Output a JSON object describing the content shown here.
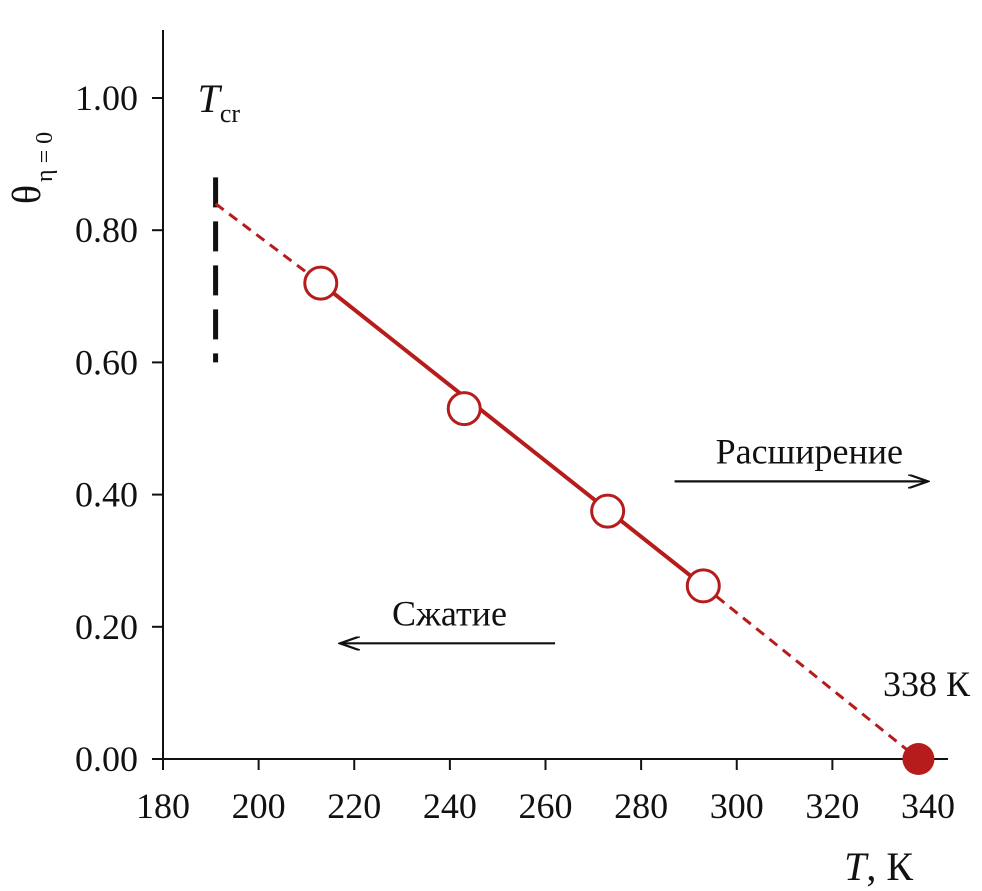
{
  "chart_data": {
    "type": "scatter",
    "xlabel": {
      "var": "T",
      "unit": ", К"
    },
    "ylabel": {
      "var": "θ",
      "sub": "η = 0"
    },
    "xlim": [
      180,
      340
    ],
    "ylim": [
      0,
      1.1
    ],
    "xticks": [
      "180",
      "200",
      "220",
      "240",
      "260",
      "280",
      "300",
      "320",
      "340"
    ],
    "yticks": [
      "0.00",
      "0.20",
      "0.40",
      "0.60",
      "0.80",
      "1.00"
    ],
    "grid": false,
    "series": [
      {
        "marker": "open-circle",
        "color": "#b71c1c",
        "x": [
          213,
          243,
          273,
          293
        ],
        "y": [
          0.72,
          0.53,
          0.375,
          0.262
        ]
      }
    ],
    "fit_line": {
      "color": "#b71c1c",
      "solid_from": [
        213,
        0.72
      ],
      "solid_to": [
        293,
        0.262
      ],
      "dashed_start": [
        191,
        0.84
      ],
      "dashed_end": [
        338,
        0.0
      ]
    },
    "highlight_point": {
      "x": 338,
      "y": 0.0,
      "label": "338 К",
      "color": "#b71c1c"
    },
    "tcr_marker": {
      "x": 191,
      "y_from": 0.6,
      "y_to": 0.88,
      "label_var": "T",
      "label_sub": "cr"
    },
    "annotations": [
      {
        "text": "Расширение",
        "direction": "right",
        "x_from": 287,
        "x_to": 340,
        "y": 0.42
      },
      {
        "text": "Сжатие",
        "direction": "left",
        "x_from": 262,
        "x_to": 217,
        "y": 0.175
      }
    ]
  }
}
